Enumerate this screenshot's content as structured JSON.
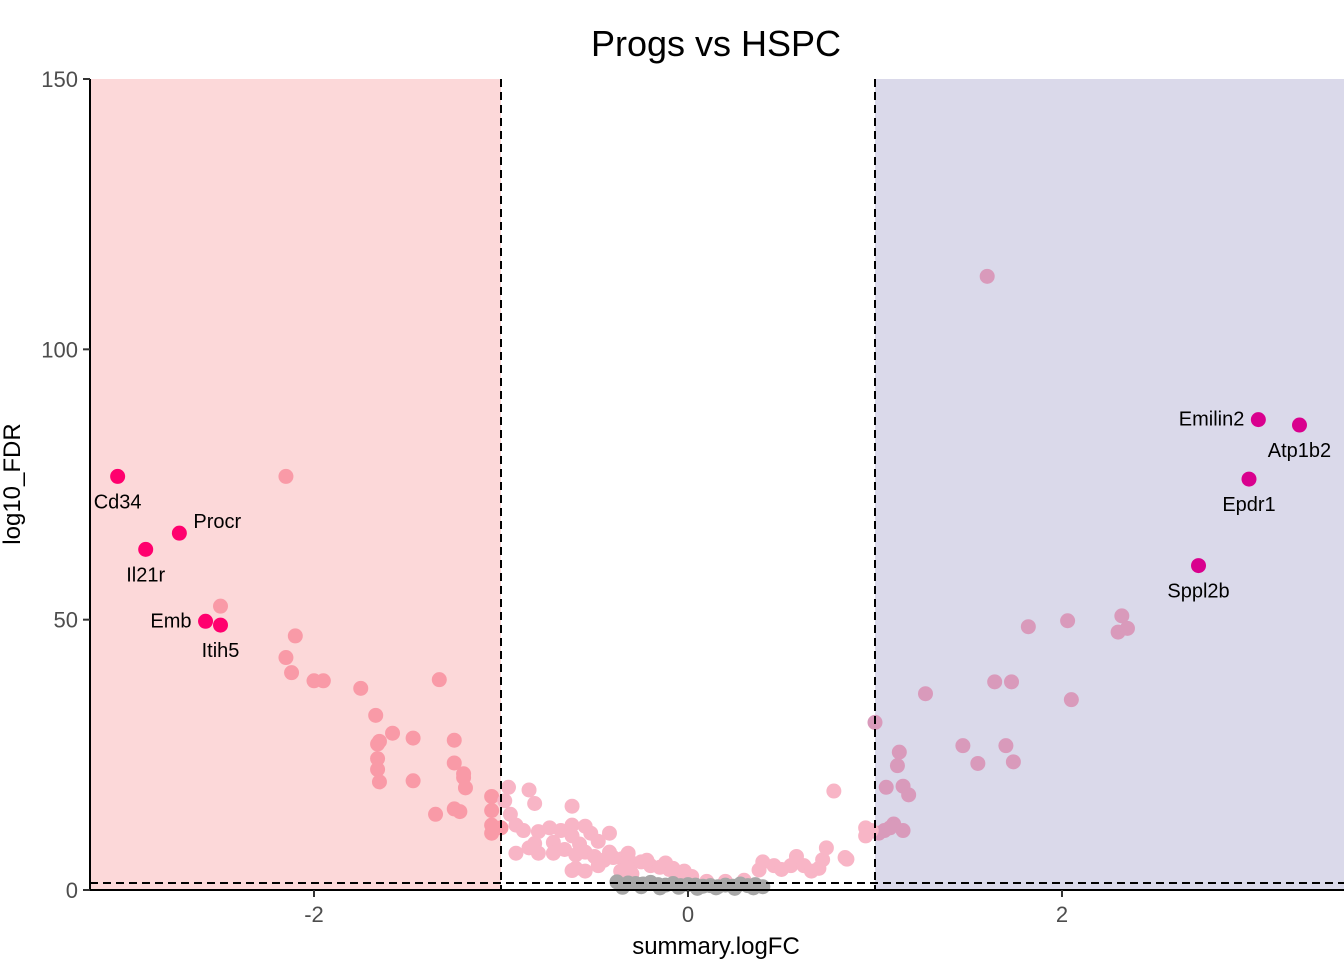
{
  "chart_data": {
    "type": "scatter",
    "title": "Progs vs HSPC",
    "xlabel": "summary.logFC",
    "ylabel": "log10_FDR",
    "xlim": [
      -3.2,
      3.5
    ],
    "ylim": [
      0,
      150
    ],
    "xticks": [
      -2,
      0,
      2
    ],
    "yticks": [
      0,
      50,
      100,
      150
    ],
    "grid": false,
    "legend": "none",
    "thresholds": {
      "logfc": [
        -1,
        1
      ],
      "log10_fdr": 1.3
    },
    "colors": {
      "down_region": "#fcd8d9",
      "up_region": "#dad9ea",
      "down_point": "#f99aa7",
      "up_point": "#d99abb",
      "mid_point": "#f8b5c6",
      "ns_point": "#a7a7a7",
      "down_labeled": "#ff006e",
      "up_labeled": "#d9008e"
    },
    "series": [
      {
        "group": "down",
        "points": [
          [
            -2.15,
            76.5
          ],
          [
            -2.5,
            52.5
          ],
          [
            -2.1,
            47
          ],
          [
            -2.15,
            43
          ],
          [
            -2.12,
            40.2
          ],
          [
            -2.0,
            38.7
          ],
          [
            -1.95,
            38.7
          ],
          [
            -1.75,
            37.3
          ],
          [
            -1.67,
            32.3
          ],
          [
            -1.58,
            29
          ],
          [
            -1.65,
            27.5
          ],
          [
            -1.66,
            27
          ],
          [
            -1.66,
            24.3
          ],
          [
            -1.66,
            22.3
          ],
          [
            -1.65,
            20
          ],
          [
            -1.47,
            28.1
          ],
          [
            -1.47,
            20.2
          ],
          [
            -1.33,
            38.9
          ],
          [
            -1.25,
            27.7
          ],
          [
            -1.25,
            23.5
          ],
          [
            -1.2,
            21.5
          ],
          [
            -1.2,
            20.8
          ],
          [
            -1.19,
            18.9
          ],
          [
            -1.25,
            15
          ],
          [
            -1.22,
            14.5
          ],
          [
            -1.35,
            14
          ],
          [
            -1.05,
            17.3
          ],
          [
            -1.05,
            14.7
          ],
          [
            -1.0,
            11.5
          ],
          [
            -1.05,
            12
          ],
          [
            -1.05,
            10.5
          ]
        ]
      },
      {
        "group": "up",
        "points": [
          [
            1.6,
            113.5
          ],
          [
            1.82,
            48.7
          ],
          [
            2.03,
            49.8
          ],
          [
            2.05,
            35.2
          ],
          [
            2.32,
            50.7
          ],
          [
            2.3,
            47.7
          ],
          [
            2.35,
            48.4
          ],
          [
            1.27,
            36.3
          ],
          [
            1.64,
            38.5
          ],
          [
            1.73,
            38.5
          ],
          [
            1.47,
            26.7
          ],
          [
            1.55,
            23.4
          ],
          [
            1.7,
            26.7
          ],
          [
            1.74,
            23.7
          ],
          [
            1.0,
            31
          ],
          [
            1.13,
            25.5
          ],
          [
            1.12,
            23
          ],
          [
            1.06,
            19
          ],
          [
            1.15,
            19.2
          ],
          [
            1.18,
            17.6
          ],
          [
            1.1,
            12.2
          ],
          [
            1.08,
            11.5
          ],
          [
            1.05,
            11
          ],
          [
            1.02,
            10.5
          ],
          [
            1.15,
            11
          ]
        ]
      },
      {
        "group": "mid",
        "points": [
          [
            -0.96,
            19
          ],
          [
            -0.85,
            18.5
          ],
          [
            -0.98,
            16.5
          ],
          [
            -0.82,
            16
          ],
          [
            -0.62,
            15.5
          ],
          [
            -0.95,
            14
          ],
          [
            -0.92,
            12
          ],
          [
            -0.88,
            11
          ],
          [
            -0.8,
            10.8
          ],
          [
            -0.74,
            11.5
          ],
          [
            -0.68,
            11
          ],
          [
            -0.62,
            12
          ],
          [
            -0.55,
            11.8
          ],
          [
            -0.62,
            10
          ],
          [
            -0.52,
            10.5
          ],
          [
            -0.48,
            9
          ],
          [
            -0.42,
            10.5
          ],
          [
            -0.58,
            8.5
          ],
          [
            -0.72,
            8.8
          ],
          [
            -0.82,
            8.6
          ],
          [
            -0.85,
            7.8
          ],
          [
            -0.8,
            6.8
          ],
          [
            -0.72,
            6.8
          ],
          [
            -0.66,
            7.5
          ],
          [
            -0.6,
            6.5
          ],
          [
            -0.55,
            7
          ],
          [
            -0.5,
            6.2
          ],
          [
            -0.45,
            5.5
          ],
          [
            -0.4,
            6
          ],
          [
            -0.35,
            5.8
          ],
          [
            -0.3,
            5
          ],
          [
            -0.25,
            5.2
          ],
          [
            -0.2,
            4.5
          ],
          [
            -0.15,
            4.2
          ],
          [
            -0.1,
            3.8
          ],
          [
            -0.05,
            3
          ],
          [
            -0.6,
            4
          ],
          [
            -0.55,
            3.5
          ],
          [
            -0.62,
            3.6
          ],
          [
            -0.48,
            4.5
          ],
          [
            -0.36,
            3.5
          ],
          [
            -0.3,
            3
          ],
          [
            -0.42,
            7
          ],
          [
            -0.32,
            6.8
          ],
          [
            -0.22,
            5.5
          ],
          [
            -0.12,
            5
          ],
          [
            -0.08,
            4
          ],
          [
            -0.02,
            3.5
          ],
          [
            0.02,
            2.5
          ],
          [
            -0.92,
            6.8
          ],
          [
            0.1,
            1.6
          ],
          [
            0.2,
            1.6
          ],
          [
            0.3,
            1.8
          ],
          [
            0.38,
            3.7
          ],
          [
            0.4,
            5.2
          ],
          [
            0.46,
            4.5
          ],
          [
            0.5,
            3.8
          ],
          [
            0.55,
            4.5
          ],
          [
            0.58,
            6.2
          ],
          [
            0.62,
            4.5
          ],
          [
            0.66,
            3.5
          ],
          [
            0.7,
            4
          ],
          [
            0.72,
            5.6
          ],
          [
            0.74,
            7.8
          ],
          [
            0.78,
            18.3
          ],
          [
            0.84,
            6
          ],
          [
            0.85,
            5.7
          ],
          [
            0.95,
            11.5
          ],
          [
            0.98,
            11
          ],
          [
            0.95,
            10
          ]
        ]
      },
      {
        "group": "ns",
        "points": [
          [
            -0.38,
            1.5
          ],
          [
            -0.32,
            1.3
          ],
          [
            -0.28,
            1.2
          ],
          [
            -0.24,
            1.1
          ],
          [
            -0.2,
            1.4
          ],
          [
            -0.16,
            1.0
          ],
          [
            -0.12,
            0.9
          ],
          [
            -0.08,
            1.2
          ],
          [
            -0.04,
            0.8
          ],
          [
            0.0,
            1.0
          ],
          [
            0.04,
            0.9
          ],
          [
            0.08,
            0.7
          ],
          [
            0.12,
            0.8
          ],
          [
            0.16,
            0.6
          ],
          [
            0.2,
            0.9
          ],
          [
            0.24,
            0.7
          ],
          [
            0.28,
            1.1
          ],
          [
            0.32,
            0.8
          ],
          [
            0.36,
            1.0
          ],
          [
            0.4,
            0.6
          ],
          [
            -0.35,
            0.5
          ],
          [
            -0.25,
            0.6
          ],
          [
            -0.15,
            0.4
          ],
          [
            -0.05,
            0.5
          ],
          [
            0.05,
            0.3
          ],
          [
            0.15,
            0.4
          ],
          [
            0.25,
            0.3
          ],
          [
            0.35,
            0.4
          ]
        ]
      }
    ],
    "labeled_genes": [
      {
        "name": "Cd34",
        "x": -3.05,
        "y": 76.5,
        "group": "down",
        "label_pos": "below"
      },
      {
        "name": "Procr",
        "x": -2.72,
        "y": 66,
        "group": "down",
        "label_pos": "right"
      },
      {
        "name": "Il21r",
        "x": -2.9,
        "y": 63,
        "group": "down",
        "label_pos": "below"
      },
      {
        "name": "Emb",
        "x": -2.58,
        "y": 49.7,
        "group": "down",
        "label_pos": "left"
      },
      {
        "name": "Itih5",
        "x": -2.5,
        "y": 49,
        "group": "down",
        "label_pos": "below"
      },
      {
        "name": "Emilin2",
        "x": 3.05,
        "y": 87,
        "group": "up",
        "label_pos": "left"
      },
      {
        "name": "Atp1b2",
        "x": 3.27,
        "y": 86,
        "group": "up",
        "label_pos": "below"
      },
      {
        "name": "Epdr1",
        "x": 3.0,
        "y": 76,
        "group": "up",
        "label_pos": "below"
      },
      {
        "name": "Sppl2b",
        "x": 2.73,
        "y": 60,
        "group": "up",
        "label_pos": "below"
      }
    ]
  }
}
